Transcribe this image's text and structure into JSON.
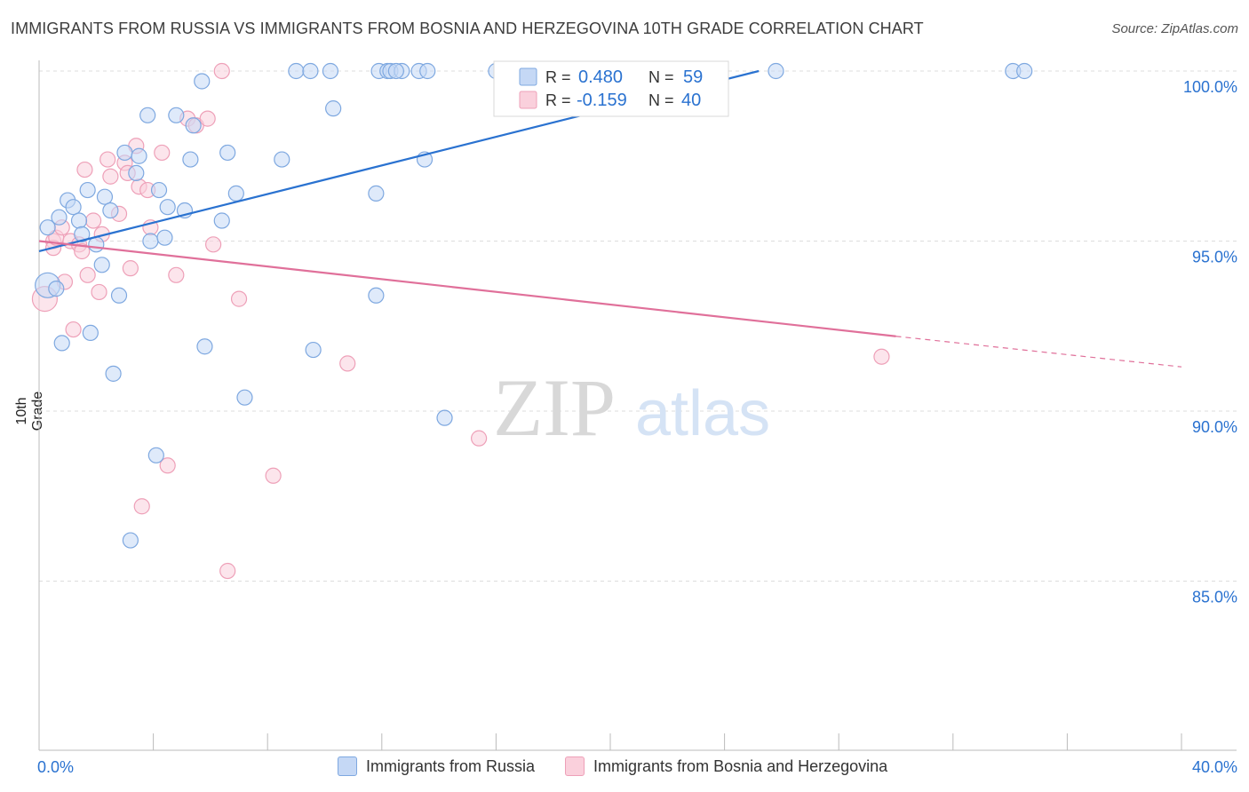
{
  "title": "IMMIGRANTS FROM RUSSIA VS IMMIGRANTS FROM BOSNIA AND HERZEGOVINA 10TH GRADE CORRELATION CHART",
  "source": "Source: ZipAtlas.com",
  "watermark": {
    "zip": "ZIP",
    "atlas": "atlas"
  },
  "colors": {
    "russia_fill": "#c5d8f5",
    "russia_stroke": "#7ea8e0",
    "russia_line": "#2a72d0",
    "bosnia_fill": "#fad0dc",
    "bosnia_stroke": "#eea0b8",
    "bosnia_line": "#e0709a",
    "value_text": "#2a72d0",
    "grid": "#dddddd"
  },
  "legend_box": {
    "russia": {
      "r_label": "R =",
      "r_value": "0.480",
      "n_label": "N =",
      "n_value": "59"
    },
    "bosnia": {
      "r_label": "R =",
      "r_value": "-0.159",
      "n_label": "N =",
      "n_value": "40"
    }
  },
  "chart_data": {
    "type": "scatter",
    "title": "IMMIGRANTS FROM RUSSIA VS IMMIGRANTS FROM BOSNIA AND HERZEGOVINA 10TH GRADE CORRELATION CHART",
    "xlabel": "",
    "ylabel": "10th Grade",
    "xlim": [
      0,
      40
    ],
    "ylim": [
      80.5,
      100.5
    ],
    "x_tick_labels": [
      "0.0%",
      "40.0%"
    ],
    "y_ticks": [
      85,
      90,
      95,
      100
    ],
    "y_tick_labels": [
      "85.0%",
      "90.0%",
      "95.0%",
      "100.0%"
    ],
    "grid": true,
    "legend_position": "bottom",
    "series": [
      {
        "name": "Immigrants from Russia",
        "points": [
          [
            0.3,
            95.4
          ],
          [
            0.3,
            93.7
          ],
          [
            0.6,
            93.6
          ],
          [
            0.7,
            95.7
          ],
          [
            0.8,
            92.0
          ],
          [
            1.0,
            96.2
          ],
          [
            1.2,
            96.0
          ],
          [
            1.4,
            95.6
          ],
          [
            1.5,
            95.2
          ],
          [
            1.7,
            96.5
          ],
          [
            1.8,
            92.3
          ],
          [
            2.0,
            94.9
          ],
          [
            2.2,
            94.3
          ],
          [
            2.3,
            96.3
          ],
          [
            2.5,
            95.9
          ],
          [
            2.6,
            91.1
          ],
          [
            2.8,
            93.4
          ],
          [
            3.0,
            97.6
          ],
          [
            3.2,
            86.2
          ],
          [
            3.4,
            97.0
          ],
          [
            3.5,
            97.5
          ],
          [
            3.8,
            98.7
          ],
          [
            3.9,
            95.0
          ],
          [
            4.2,
            96.5
          ],
          [
            4.1,
            88.7
          ],
          [
            4.4,
            95.1
          ],
          [
            4.5,
            96.0
          ],
          [
            4.8,
            98.7
          ],
          [
            5.1,
            95.9
          ],
          [
            5.3,
            97.4
          ],
          [
            5.4,
            98.4
          ],
          [
            5.7,
            99.7
          ],
          [
            5.8,
            91.9
          ],
          [
            6.4,
            95.6
          ],
          [
            6.6,
            97.6
          ],
          [
            6.9,
            96.4
          ],
          [
            7.2,
            90.4
          ],
          [
            8.5,
            97.4
          ],
          [
            9.0,
            100.0
          ],
          [
            9.5,
            100.0
          ],
          [
            10.2,
            100.0
          ],
          [
            9.6,
            91.8
          ],
          [
            10.3,
            98.9
          ],
          [
            11.8,
            96.4
          ],
          [
            11.8,
            93.4
          ],
          [
            11.9,
            100.0
          ],
          [
            12.2,
            100.0
          ],
          [
            12.3,
            100.0
          ],
          [
            12.7,
            100.0
          ],
          [
            12.5,
            100.0
          ],
          [
            13.3,
            100.0
          ],
          [
            13.5,
            97.4
          ],
          [
            13.6,
            100.0
          ],
          [
            14.2,
            89.8
          ],
          [
            16.0,
            100.0
          ],
          [
            21.3,
            100.0
          ],
          [
            25.8,
            100.0
          ],
          [
            34.1,
            100.0
          ],
          [
            34.5,
            100.0
          ]
        ],
        "trend": {
          "x": [
            0,
            25.2
          ],
          "y": [
            94.7,
            100.0
          ]
        }
      },
      {
        "name": "Immigrants from Bosnia and Herzegovina",
        "points": [
          [
            0.2,
            93.3
          ],
          [
            0.5,
            95.0
          ],
          [
            0.5,
            94.8
          ],
          [
            0.6,
            95.1
          ],
          [
            0.8,
            95.4
          ],
          [
            0.9,
            93.8
          ],
          [
            1.1,
            95.0
          ],
          [
            1.2,
            92.4
          ],
          [
            1.4,
            94.9
          ],
          [
            1.5,
            94.7
          ],
          [
            1.6,
            97.1
          ],
          [
            1.7,
            94.0
          ],
          [
            1.9,
            95.6
          ],
          [
            2.1,
            93.5
          ],
          [
            2.2,
            95.2
          ],
          [
            2.4,
            97.4
          ],
          [
            2.5,
            96.9
          ],
          [
            2.8,
            95.8
          ],
          [
            3.0,
            97.3
          ],
          [
            3.1,
            97.0
          ],
          [
            3.2,
            94.2
          ],
          [
            3.4,
            97.8
          ],
          [
            3.5,
            96.6
          ],
          [
            3.6,
            87.2
          ],
          [
            3.8,
            96.5
          ],
          [
            3.9,
            95.4
          ],
          [
            4.3,
            97.6
          ],
          [
            4.5,
            88.4
          ],
          [
            4.8,
            94.0
          ],
          [
            5.2,
            98.6
          ],
          [
            5.5,
            98.4
          ],
          [
            5.9,
            98.6
          ],
          [
            6.1,
            94.9
          ],
          [
            6.4,
            100.0
          ],
          [
            6.6,
            85.3
          ],
          [
            7.0,
            93.3
          ],
          [
            8.2,
            88.1
          ],
          [
            10.8,
            91.4
          ],
          [
            15.4,
            89.2
          ],
          [
            29.5,
            91.6
          ]
        ],
        "trend": {
          "x": [
            0,
            30.0
          ],
          "y": [
            95.0,
            92.2
          ]
        },
        "trend_dashed": {
          "x": [
            30.0,
            40.0
          ],
          "y": [
            92.2,
            91.3
          ]
        }
      }
    ]
  },
  "legend_bottom": {
    "russia_label": "Immigrants from Russia",
    "bosnia_label": "Immigrants from Bosnia and Herzegovina"
  }
}
